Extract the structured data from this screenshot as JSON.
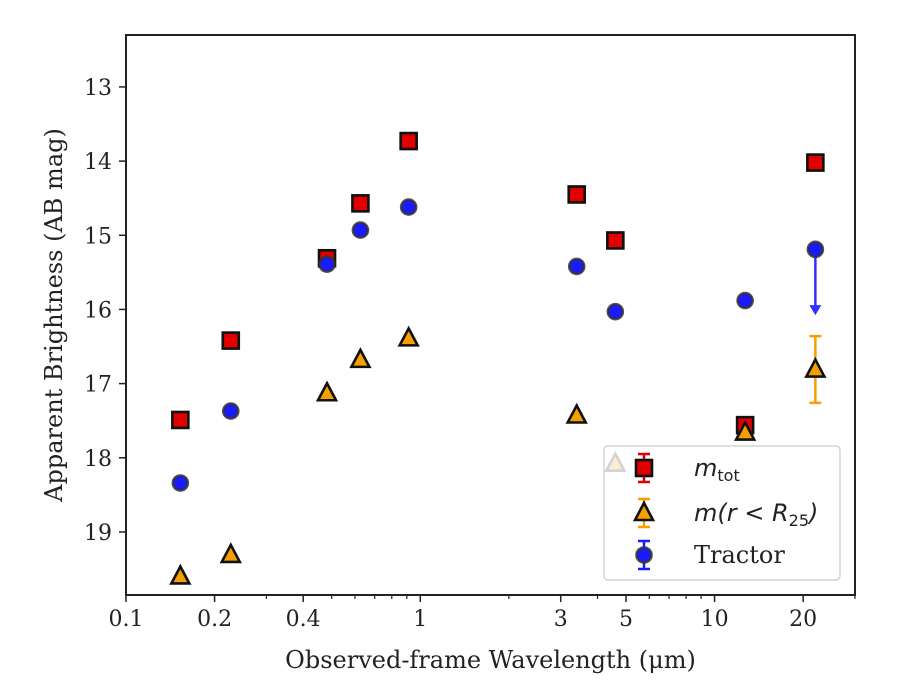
{
  "chart_data": {
    "type": "scatter",
    "xlabel": "Observed-frame Wavelength (μm)",
    "ylabel": "Apparent Brightness (AB mag)",
    "x_scale": "log",
    "xlim": [
      0.1,
      30
    ],
    "ylim": [
      19.85,
      12.3
    ],
    "y_inverted": true,
    "grid": false,
    "legend_position": "lower right",
    "x_ticks": [
      0.1,
      0.2,
      0.4,
      1,
      3,
      5,
      10,
      20
    ],
    "x_tick_labels": [
      "0.1",
      "0.2",
      "0.4",
      "1",
      "3",
      "5",
      "10",
      "20"
    ],
    "y_ticks": [
      13,
      14,
      15,
      16,
      17,
      18,
      19
    ],
    "y_tick_labels": [
      "13",
      "14",
      "15",
      "16",
      "17",
      "18",
      "19"
    ],
    "series": [
      {
        "key": "mtot",
        "legend_text": "m",
        "legend_subscript": "tot",
        "marker": "square",
        "color": "#e00000",
        "edge_color": "#111111",
        "points": [
          {
            "x": 0.153,
            "y": 17.49
          },
          {
            "x": 0.227,
            "y": 16.42
          },
          {
            "x": 0.482,
            "y": 15.31
          },
          {
            "x": 0.626,
            "y": 14.57
          },
          {
            "x": 0.913,
            "y": 13.73
          },
          {
            "x": 3.4,
            "y": 14.45
          },
          {
            "x": 4.6,
            "y": 15.07
          },
          {
            "x": 12.7,
            "y": 17.56
          },
          {
            "x": 22.0,
            "y": 14.02
          }
        ]
      },
      {
        "key": "mr25",
        "legend_text": "m(r < R",
        "legend_subscript": "25",
        "legend_close": ")",
        "marker": "triangle",
        "color": "#f5a000",
        "edge_color": "#111111",
        "points": [
          {
            "x": 0.153,
            "y": 19.6
          },
          {
            "x": 0.227,
            "y": 19.31
          },
          {
            "x": 0.482,
            "y": 17.13
          },
          {
            "x": 0.626,
            "y": 16.68
          },
          {
            "x": 0.913,
            "y": 16.39
          },
          {
            "x": 3.4,
            "y": 17.43
          },
          {
            "x": 4.6,
            "y": 18.08
          },
          {
            "x": 12.7,
            "y": 17.66
          },
          {
            "x": 22.0,
            "y": 16.81,
            "yerr": 0.45
          }
        ]
      },
      {
        "key": "tractor",
        "legend_text": "Tractor",
        "marker": "circle",
        "color": "#1a1aff",
        "edge_color": "#333333",
        "points": [
          {
            "x": 0.153,
            "y": 18.34
          },
          {
            "x": 0.227,
            "y": 17.37
          },
          {
            "x": 0.482,
            "y": 15.39
          },
          {
            "x": 0.626,
            "y": 14.93
          },
          {
            "x": 0.913,
            "y": 14.62
          },
          {
            "x": 3.4,
            "y": 15.42
          },
          {
            "x": 4.6,
            "y": 16.03
          },
          {
            "x": 12.7,
            "y": 15.88
          },
          {
            "x": 22.0,
            "y": 15.19,
            "upper_limit_to": 16.05
          }
        ]
      }
    ]
  }
}
